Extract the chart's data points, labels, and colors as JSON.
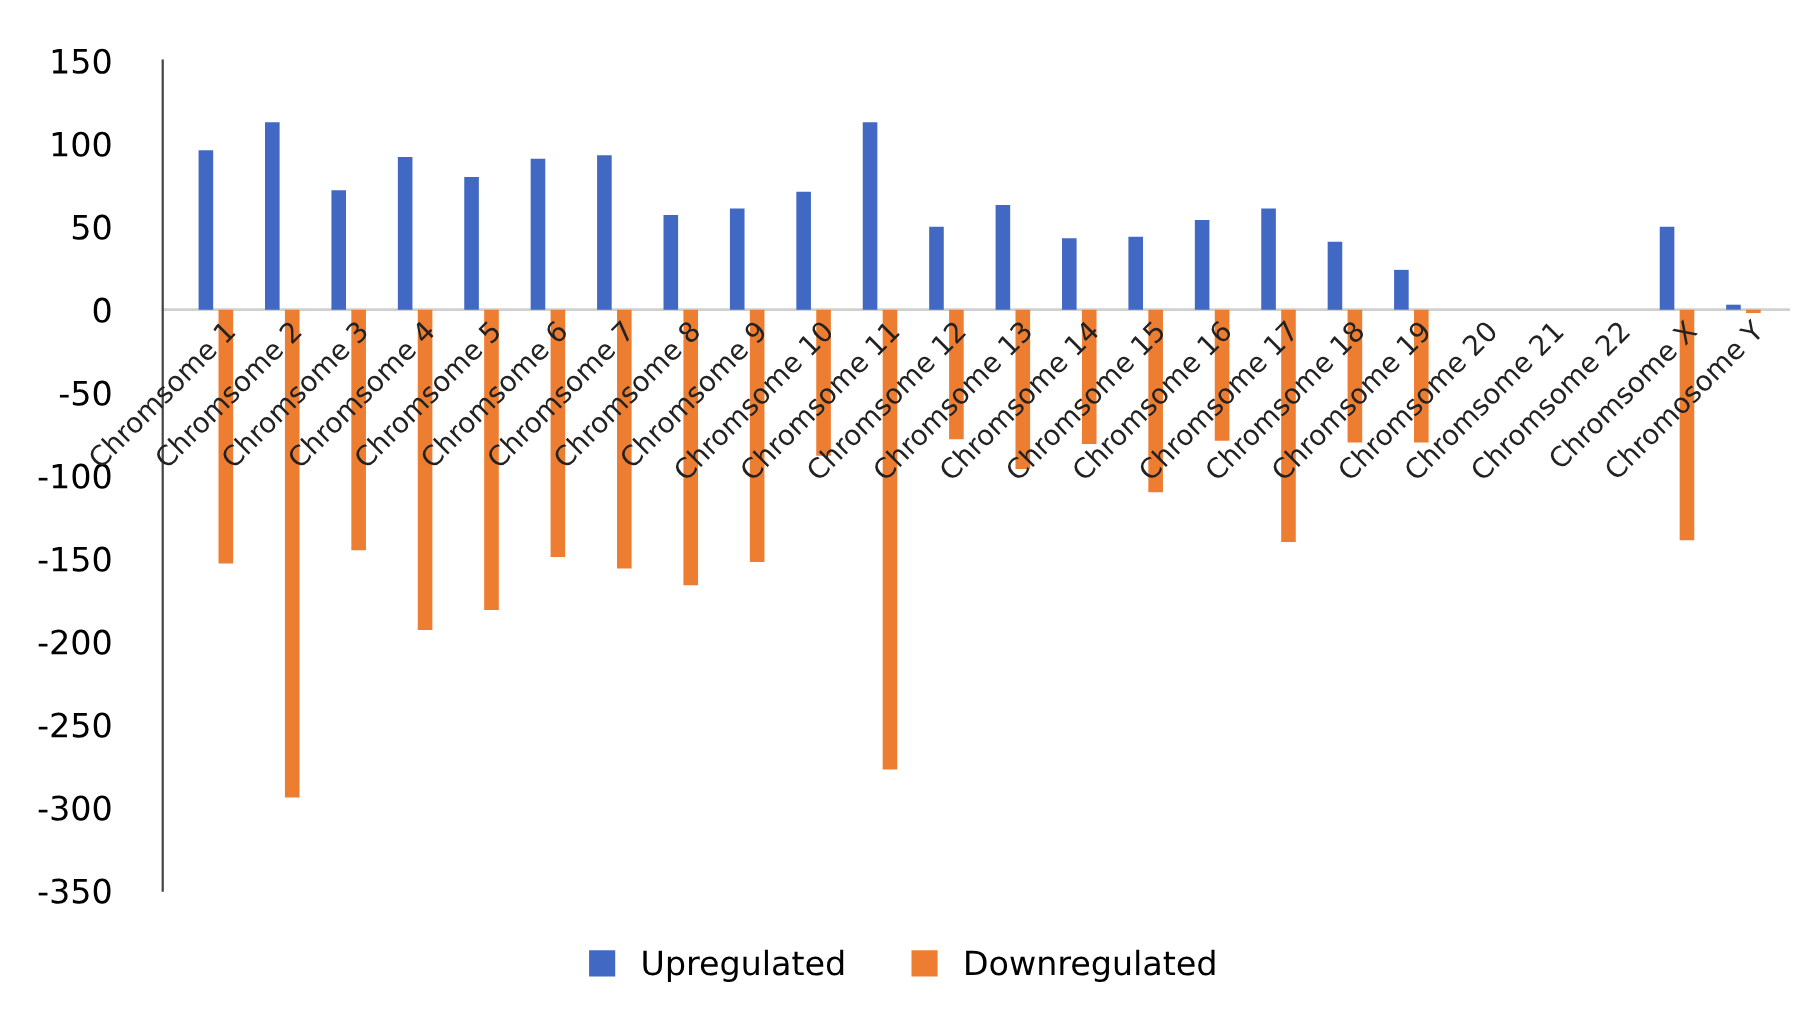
{
  "chart_data": {
    "type": "bar",
    "categories": [
      "Chromsome 1",
      "Chromsome 2",
      "Chromsome 3",
      "Chromsome 4",
      "Chromsome 5",
      "Chromsome 6",
      "Chromsome 7",
      "Chromsome 8",
      "Chromsome 9",
      "Chromsome 10",
      "Chromsome 11",
      "Chromsome 12",
      "Chromsome 13",
      "Chromsome 14",
      "Chromsome 15",
      "Chromsome 16",
      "Chromsome 17",
      "Chromsome 18",
      "Chromsome 19",
      "Chromsome 20",
      "Chromsome 21",
      "Chromsome 22",
      "Chromsome X",
      "Chromosome Y"
    ],
    "series": [
      {
        "name": "Upregulated",
        "color": "#4169c4",
        "values": [
          96,
          113,
          72,
          92,
          80,
          91,
          93,
          57,
          61,
          71,
          113,
          50,
          63,
          43,
          44,
          54,
          61,
          41,
          24,
          0,
          0,
          0,
          50,
          3
        ]
      },
      {
        "name": "Downregulated",
        "color": "#ed7d31",
        "values": [
          -153,
          -294,
          -145,
          -193,
          -181,
          -149,
          -156,
          -166,
          -152,
          -88,
          -277,
          -78,
          -96,
          -81,
          -110,
          -79,
          -140,
          -80,
          -80,
          0,
          0,
          0,
          -139,
          -2
        ]
      }
    ],
    "ylim": [
      -350,
      150
    ],
    "yticks": [
      -350,
      -300,
      -250,
      -200,
      -150,
      -100,
      -50,
      0,
      50,
      100,
      150
    ],
    "legend": "bottom",
    "grid": false
  }
}
